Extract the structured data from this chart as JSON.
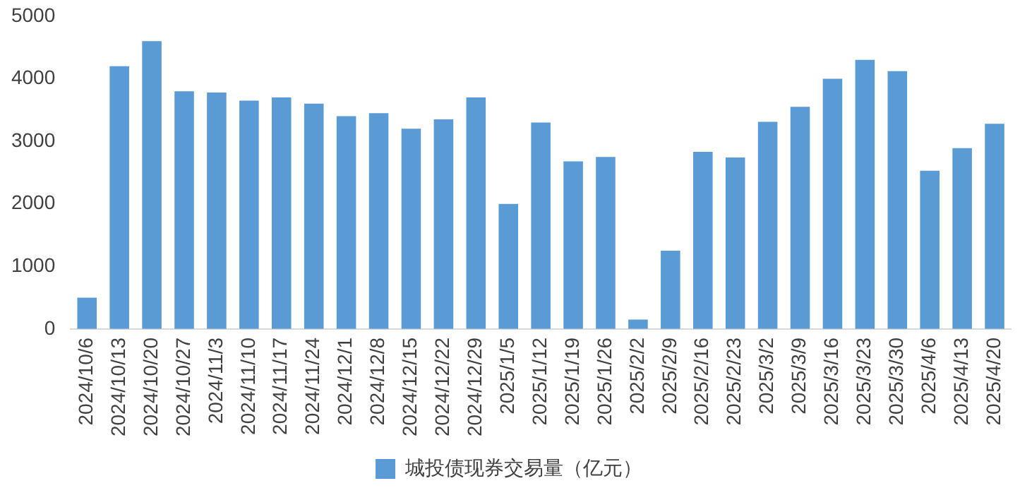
{
  "chart_data": {
    "type": "bar",
    "categories": [
      "2024/10/6",
      "2024/10/13",
      "2024/10/20",
      "2024/10/27",
      "2024/11/3",
      "2024/11/10",
      "2024/11/17",
      "2024/11/24",
      "2024/12/1",
      "2024/12/8",
      "2024/12/15",
      "2024/12/22",
      "2024/12/29",
      "2025/1/5",
      "2025/1/12",
      "2025/1/19",
      "2025/1/26",
      "2025/2/2",
      "2025/2/9",
      "2025/2/16",
      "2025/2/23",
      "2025/3/2",
      "2025/3/9",
      "2025/3/16",
      "2025/3/23",
      "2025/3/30",
      "2025/4/6",
      "2025/4/13",
      "2025/4/20"
    ],
    "series": [
      {
        "name": "城投债现券交易量（亿元）",
        "color": "#5b9bd5",
        "values": [
          500,
          4200,
          4600,
          3800,
          3780,
          3650,
          3700,
          3600,
          3400,
          3450,
          3200,
          3350,
          3700,
          2000,
          3300,
          2680,
          2750,
          150,
          1250,
          2830,
          2740,
          3310,
          3550,
          4000,
          4300,
          4120,
          2530,
          2890,
          3280
        ]
      }
    ],
    "ylim": [
      0,
      5000
    ],
    "yticks": [
      0,
      1000,
      2000,
      3000,
      4000,
      5000
    ],
    "grid": false,
    "legend": "bottom"
  }
}
